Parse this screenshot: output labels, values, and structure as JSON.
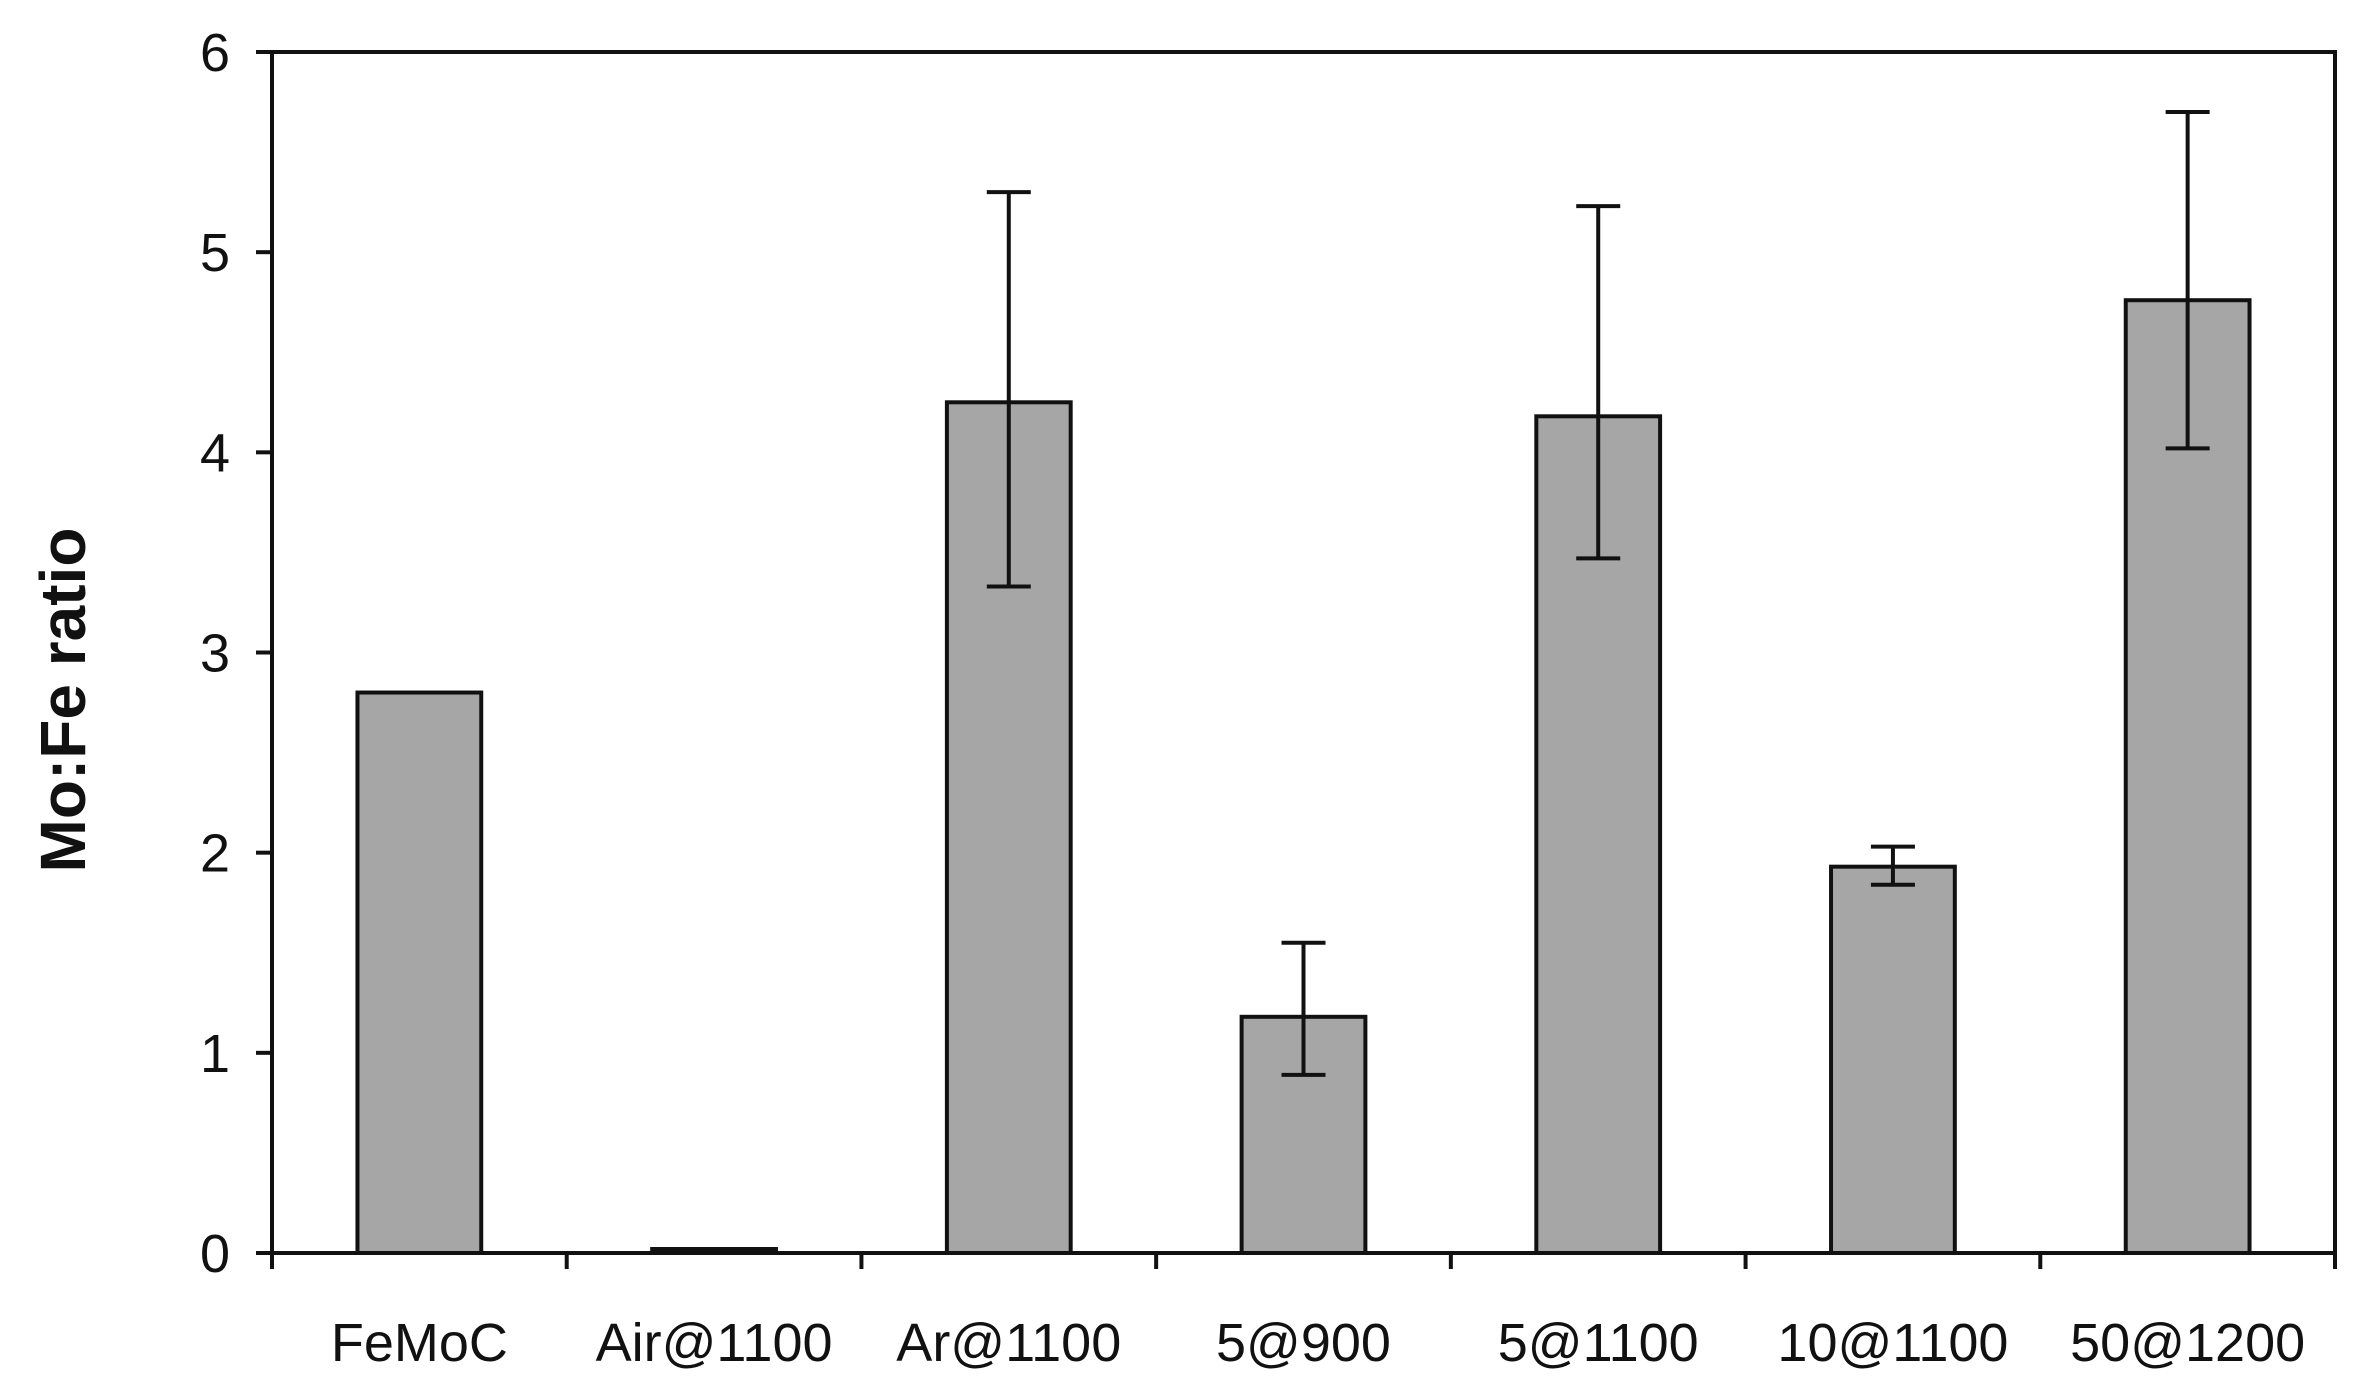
{
  "chart_data": {
    "type": "bar",
    "title": "",
    "xlabel": "",
    "ylabel": "Mo:Fe ratio",
    "categories": [
      "FeMoC",
      "Air@1100",
      "Ar@1100",
      "5@900",
      "5@1100",
      "10@1100",
      "50@1200"
    ],
    "values": [
      2.8,
      0.02,
      4.25,
      1.18,
      4.18,
      1.93,
      4.76
    ],
    "error_upper": [
      2.8,
      0.02,
      5.3,
      1.55,
      5.23,
      2.03,
      5.7
    ],
    "error_lower": [
      2.8,
      0.02,
      3.33,
      0.89,
      3.47,
      1.84,
      4.02
    ],
    "ylim": [
      0,
      6
    ],
    "yticks": [
      0,
      1,
      2,
      3,
      4,
      5,
      6
    ],
    "grid": false,
    "legend": "none",
    "colors": {
      "bar_fill": "#a6a6a6",
      "bar_stroke": "#111111",
      "axis": "#111111",
      "error_bar": "#111111"
    }
  }
}
